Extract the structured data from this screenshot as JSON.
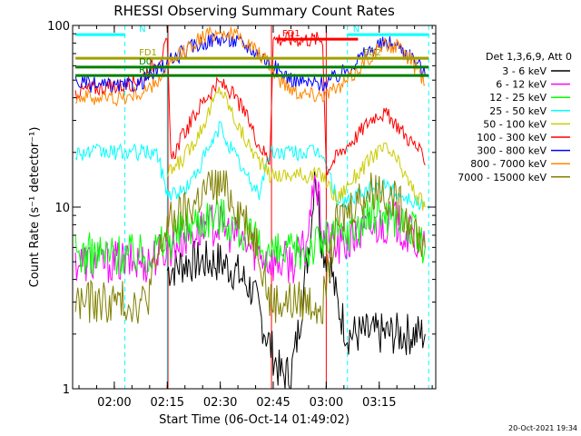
{
  "chart_data": {
    "type": "line",
    "title": "RHESSI Observing Summary Count Rates",
    "xlabel": "Start Time (06-Oct-14 01:49:02)",
    "ylabel": "Count Rate (s⁻¹ detector⁻¹)",
    "x_unit": "minutes after 01:49:02",
    "xlim": [
      -0.8,
      102
    ],
    "ylim": [
      1,
      100
    ],
    "yscale": "log",
    "x_ticks": [
      {
        "value": 11,
        "label": "02:00"
      },
      {
        "value": 26,
        "label": "02:15"
      },
      {
        "value": 41,
        "label": "02:30"
      },
      {
        "value": 56,
        "label": "02:45"
      },
      {
        "value": 71,
        "label": "03:00"
      },
      {
        "value": 86,
        "label": "03:15"
      }
    ],
    "y_ticks": [
      {
        "value": 1,
        "label": "1"
      },
      {
        "value": 10,
        "label": "10"
      },
      {
        "value": 100,
        "label": "100"
      }
    ],
    "legend_header": "Det 1,3,6,9, Att 0",
    "legend_position": "right",
    "series": [
      {
        "name": "3 - 6 keV",
        "color": "#000000",
        "points": [
          [
            26,
            4.5
          ],
          [
            32,
            5
          ],
          [
            38,
            5
          ],
          [
            41,
            5
          ],
          [
            45,
            4.5
          ],
          [
            50,
            3.5
          ],
          [
            54,
            2
          ],
          [
            58,
            1.2
          ],
          [
            61,
            1.2
          ],
          [
            63,
            2
          ],
          [
            65,
            4
          ],
          [
            66,
            6
          ],
          [
            67,
            9
          ],
          [
            67.7,
            17
          ],
          [
            68.5,
            12
          ],
          [
            70,
            6
          ],
          [
            72,
            5
          ],
          [
            74,
            3
          ],
          [
            77,
            2
          ],
          [
            81,
            2
          ],
          [
            86,
            2
          ],
          [
            90,
            2
          ],
          [
            95,
            2
          ],
          [
            99,
            2
          ]
        ]
      },
      {
        "name": "6 - 12 keV",
        "color": "#ff00ff",
        "points": [
          [
            0,
            5
          ],
          [
            10,
            5
          ],
          [
            20,
            5
          ],
          [
            26,
            6
          ],
          [
            32,
            7
          ],
          [
            38,
            8
          ],
          [
            41,
            8
          ],
          [
            45,
            7
          ],
          [
            50,
            6
          ],
          [
            56,
            5
          ],
          [
            62,
            5
          ],
          [
            65,
            6
          ],
          [
            67,
            10
          ],
          [
            67.7,
            18
          ],
          [
            68.5,
            12
          ],
          [
            70,
            7
          ],
          [
            74,
            6
          ],
          [
            78,
            6.5
          ],
          [
            82,
            7.5
          ],
          [
            86,
            8
          ],
          [
            90,
            8.5
          ],
          [
            94,
            7
          ],
          [
            99,
            6
          ]
        ]
      },
      {
        "name": "12 - 25 keV",
        "color": "#00ff00",
        "points": [
          [
            0,
            5.5
          ],
          [
            10,
            5.5
          ],
          [
            20,
            5.5
          ],
          [
            26,
            6.5
          ],
          [
            32,
            8
          ],
          [
            38,
            9
          ],
          [
            41,
            9
          ],
          [
            45,
            8
          ],
          [
            50,
            6.5
          ],
          [
            56,
            5.5
          ],
          [
            62,
            5.5
          ],
          [
            66,
            6
          ],
          [
            70,
            6.5
          ],
          [
            74,
            7
          ],
          [
            78,
            7.5
          ],
          [
            82,
            8.5
          ],
          [
            86,
            9.5
          ],
          [
            90,
            9
          ],
          [
            94,
            8
          ],
          [
            99,
            6
          ]
        ]
      },
      {
        "name": "25 - 50 keV",
        "color": "#00ffff",
        "points": [
          [
            0,
            20
          ],
          [
            10,
            20
          ],
          [
            16,
            20
          ],
          [
            20,
            20
          ],
          [
            23,
            20
          ],
          [
            26,
            12
          ],
          [
            30,
            12
          ],
          [
            33,
            14
          ],
          [
            36,
            18
          ],
          [
            39,
            23
          ],
          [
            41,
            28
          ],
          [
            43,
            23
          ],
          [
            46,
            18
          ],
          [
            49,
            14
          ],
          [
            52,
            12
          ],
          [
            55,
            20
          ],
          [
            60,
            20
          ],
          [
            64,
            20
          ],
          [
            68,
            20
          ],
          [
            70,
            20
          ],
          [
            74,
            11
          ],
          [
            78,
            11
          ],
          [
            82,
            12
          ],
          [
            85,
            13
          ],
          [
            88,
            13
          ],
          [
            91,
            12
          ],
          [
            95,
            11
          ],
          [
            99,
            10
          ]
        ]
      },
      {
        "name": "50 - 100 keV",
        "color": "#cccc00",
        "points": [
          [
            26,
            15
          ],
          [
            30,
            18
          ],
          [
            33,
            22
          ],
          [
            36,
            28
          ],
          [
            39,
            38
          ],
          [
            41,
            45
          ],
          [
            43,
            38
          ],
          [
            46,
            28
          ],
          [
            49,
            22
          ],
          [
            52,
            18
          ],
          [
            55,
            15
          ],
          [
            57,
            15
          ],
          [
            62,
            15
          ],
          [
            68,
            15
          ],
          [
            70,
            15
          ],
          [
            74,
            11
          ],
          [
            78,
            14
          ],
          [
            82,
            17
          ],
          [
            85,
            20
          ],
          [
            88,
            21
          ],
          [
            91,
            18
          ],
          [
            95,
            13
          ],
          [
            99,
            10
          ]
        ]
      },
      {
        "name": "100 - 300 keV",
        "color": "#ff0000",
        "points": [
          [
            0,
            43
          ],
          [
            5,
            45
          ],
          [
            10,
            46
          ],
          [
            14,
            47
          ],
          [
            18,
            50
          ],
          [
            22,
            60
          ],
          [
            25,
            72
          ],
          [
            26,
            80
          ],
          [
            27,
            18
          ],
          [
            30,
            24
          ],
          [
            33,
            30
          ],
          [
            36,
            38
          ],
          [
            39,
            45
          ],
          [
            41,
            48
          ],
          [
            43,
            45
          ],
          [
            46,
            38
          ],
          [
            49,
            30
          ],
          [
            52,
            22
          ],
          [
            55,
            18
          ],
          [
            56,
            84
          ],
          [
            58,
            84
          ],
          [
            62,
            84
          ],
          [
            66,
            84
          ],
          [
            70,
            84
          ],
          [
            71,
            16
          ],
          [
            74,
            19
          ],
          [
            77,
            22
          ],
          [
            80,
            25
          ],
          [
            82,
            28
          ],
          [
            84,
            31
          ],
          [
            86,
            33
          ],
          [
            88,
            32
          ],
          [
            90,
            30
          ],
          [
            92,
            27
          ],
          [
            94,
            24
          ],
          [
            97,
            21
          ],
          [
            99,
            17
          ]
        ]
      },
      {
        "name": "300 - 800 keV",
        "color": "#0000ff",
        "points": [
          [
            0,
            49
          ],
          [
            5,
            47
          ],
          [
            10,
            46
          ],
          [
            14,
            46
          ],
          [
            18,
            48
          ],
          [
            22,
            54
          ],
          [
            26,
            62
          ],
          [
            30,
            70
          ],
          [
            34,
            78
          ],
          [
            38,
            83
          ],
          [
            41,
            85
          ],
          [
            44,
            83
          ],
          [
            48,
            78
          ],
          [
            52,
            70
          ],
          [
            55,
            62
          ],
          [
            58,
            55
          ],
          [
            62,
            50
          ],
          [
            66,
            48
          ],
          [
            70,
            48
          ],
          [
            74,
            52
          ],
          [
            78,
            60
          ],
          [
            82,
            70
          ],
          [
            86,
            78
          ],
          [
            89,
            80
          ],
          [
            92,
            76
          ],
          [
            95,
            68
          ],
          [
            98,
            58
          ],
          [
            99,
            53
          ]
        ]
      },
      {
        "name": "800 - 7000 keV",
        "color": "#ff8800",
        "points": [
          [
            0,
            41
          ],
          [
            5,
            40
          ],
          [
            10,
            40
          ],
          [
            14,
            40
          ],
          [
            18,
            42
          ],
          [
            22,
            46
          ],
          [
            26,
            58
          ],
          [
            30,
            70
          ],
          [
            34,
            82
          ],
          [
            38,
            90
          ],
          [
            41,
            92
          ],
          [
            44,
            90
          ],
          [
            48,
            82
          ],
          [
            52,
            70
          ],
          [
            55,
            60
          ],
          [
            58,
            50
          ],
          [
            62,
            44
          ],
          [
            66,
            42
          ],
          [
            70,
            42
          ],
          [
            74,
            44
          ],
          [
            78,
            52
          ],
          [
            82,
            64
          ],
          [
            86,
            75
          ],
          [
            89,
            78
          ],
          [
            92,
            74
          ],
          [
            95,
            64
          ],
          [
            98,
            52
          ],
          [
            99,
            47
          ]
        ]
      },
      {
        "name": "7000 - 15000 keV",
        "color": "#808000",
        "points": [
          [
            0,
            3
          ],
          [
            10,
            3
          ],
          [
            20,
            3
          ],
          [
            26,
            8
          ],
          [
            30,
            9
          ],
          [
            33,
            10
          ],
          [
            36,
            12
          ],
          [
            39,
            13
          ],
          [
            41,
            13
          ],
          [
            43,
            12
          ],
          [
            46,
            10
          ],
          [
            49,
            8
          ],
          [
            52,
            6
          ],
          [
            55,
            3
          ],
          [
            60,
            3
          ],
          [
            68,
            3
          ],
          [
            70,
            3
          ],
          [
            72,
            5
          ],
          [
            74,
            8
          ],
          [
            77,
            9.5
          ],
          [
            80,
            11
          ],
          [
            83,
            12
          ],
          [
            86,
            13
          ],
          [
            88,
            12
          ],
          [
            91,
            10.5
          ],
          [
            94,
            9
          ],
          [
            97,
            7
          ],
          [
            99,
            6
          ]
        ]
      }
    ],
    "flags": [
      {
        "label": "N",
        "color": "#00ffff",
        "x_start": 0,
        "x_end": 14,
        "y": 89
      },
      {
        "label": "N",
        "color": "#00ffff",
        "x_start": 77,
        "x_end": 100,
        "y": 89
      },
      {
        "label": "FD1",
        "color": "#ff0000",
        "x_start": 57,
        "x_end": 80,
        "y": 84
      },
      {
        "label": "FD1",
        "color": "#a0a000",
        "x_start": 0,
        "x_end": 100,
        "y": 66
      },
      {
        "label": "FD2",
        "color": "#a0a000",
        "x_start": 80,
        "x_end": 100,
        "y": 66
      },
      {
        "label": "D0",
        "color": "#008000",
        "x_start": 0,
        "x_end": 100,
        "y": 59
      },
      {
        "label": "RD",
        "color": "#008000",
        "x_start": 0,
        "x_end": 100,
        "y": 53
      }
    ],
    "event_lines": [
      {
        "x": 14,
        "color": "#00ffff",
        "style": "dashed"
      },
      {
        "x": 26,
        "color": "#00ffff",
        "style": "solid"
      },
      {
        "x": 26.2,
        "color": "#ff0000",
        "style": "solid"
      },
      {
        "x": 55.5,
        "color": "#ff0000",
        "style": "solid"
      },
      {
        "x": 71,
        "color": "#ff0000",
        "style": "solid"
      },
      {
        "x": 77,
        "color": "#00ffff",
        "style": "dashed"
      },
      {
        "x": 100,
        "color": "#00ffff",
        "style": "dashed"
      }
    ],
    "footer": "20-Oct-2021 19:34"
  }
}
